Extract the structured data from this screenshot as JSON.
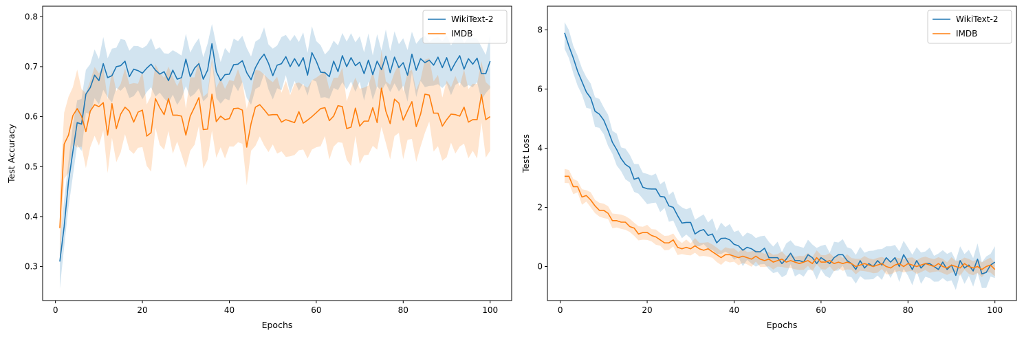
{
  "colors": {
    "blue": "#1f77b4",
    "orange": "#ff7f0e"
  },
  "chart_data": [
    {
      "type": "line",
      "title": "",
      "xlabel": "Epochs",
      "ylabel": "Test Accuracy",
      "xlim": [
        -2.95,
        104.95
      ],
      "ylim": [
        0.232,
        0.821
      ],
      "xticks": [
        0,
        20,
        40,
        60,
        80,
        100
      ],
      "xtick_labels": [
        "0",
        "20",
        "40",
        "60",
        "80",
        "100"
      ],
      "yticks": [
        0.3,
        0.4,
        0.5,
        0.6,
        0.7,
        0.8
      ],
      "ytick_labels": [
        "0.3",
        "0.4",
        "0.5",
        "0.6",
        "0.7",
        "0.8"
      ],
      "legend": "top-right",
      "x": [
        1,
        2,
        3,
        4,
        5,
        6,
        7,
        8,
        9,
        10,
        11,
        12,
        13,
        14,
        15,
        16,
        17,
        18,
        19,
        20,
        21,
        22,
        23,
        24,
        25,
        26,
        27,
        28,
        29,
        30,
        31,
        32,
        33,
        34,
        35,
        36,
        37,
        38,
        39,
        40,
        41,
        42,
        43,
        44,
        45,
        46,
        47,
        48,
        49,
        50,
        51,
        52,
        53,
        54,
        55,
        56,
        57,
        58,
        59,
        60,
        61,
        62,
        63,
        64,
        65,
        66,
        67,
        68,
        69,
        70,
        71,
        72,
        73,
        74,
        75,
        76,
        77,
        78,
        79,
        80,
        81,
        82,
        83,
        84,
        85,
        86,
        87,
        88,
        89,
        90,
        91,
        92,
        93,
        94,
        95,
        96,
        97,
        98,
        99,
        100
      ],
      "series": [
        {
          "name": "WikiText-2",
          "color": "#1f77b4",
          "values": [
            0.31,
            0.38,
            0.47,
            0.53,
            0.588,
            0.585,
            0.645,
            0.658,
            0.683,
            0.672,
            0.706,
            0.678,
            0.682,
            0.7,
            0.702,
            0.711,
            0.68,
            0.695,
            0.692,
            0.687,
            0.697,
            0.705,
            0.693,
            0.685,
            0.69,
            0.672,
            0.693,
            0.675,
            0.678,
            0.715,
            0.68,
            0.697,
            0.706,
            0.675,
            0.693,
            0.746,
            0.69,
            0.672,
            0.684,
            0.685,
            0.704,
            0.705,
            0.712,
            0.688,
            0.674,
            0.698,
            0.714,
            0.725,
            0.707,
            0.682,
            0.703,
            0.706,
            0.72,
            0.7,
            0.716,
            0.701,
            0.718,
            0.683,
            0.728,
            0.711,
            0.689,
            0.688,
            0.68,
            0.711,
            0.69,
            0.722,
            0.7,
            0.718,
            0.702,
            0.709,
            0.686,
            0.713,
            0.684,
            0.711,
            0.694,
            0.721,
            0.688,
            0.719,
            0.698,
            0.708,
            0.683,
            0.725,
            0.693,
            0.716,
            0.708,
            0.713,
            0.703,
            0.719,
            0.698,
            0.718,
            0.692,
            0.708,
            0.722,
            0.695,
            0.716,
            0.705,
            0.717,
            0.686,
            0.686,
            0.711
          ],
          "band": 0.045
        },
        {
          "name": "IMDB",
          "color": "#ff7f0e",
          "values": [
            0.377,
            0.545,
            0.563,
            0.602,
            0.616,
            0.601,
            0.57,
            0.611,
            0.624,
            0.62,
            0.628,
            0.563,
            0.626,
            0.576,
            0.605,
            0.619,
            0.611,
            0.589,
            0.609,
            0.613,
            0.561,
            0.568,
            0.636,
            0.618,
            0.604,
            0.636,
            0.603,
            0.603,
            0.601,
            0.563,
            0.601,
            0.619,
            0.638,
            0.574,
            0.575,
            0.645,
            0.59,
            0.601,
            0.594,
            0.596,
            0.616,
            0.617,
            0.613,
            0.539,
            0.586,
            0.619,
            0.624,
            0.614,
            0.603,
            0.604,
            0.604,
            0.589,
            0.594,
            0.591,
            0.588,
            0.61,
            0.587,
            0.593,
            0.6,
            0.608,
            0.616,
            0.618,
            0.592,
            0.601,
            0.622,
            0.62,
            0.576,
            0.579,
            0.617,
            0.581,
            0.591,
            0.591,
            0.618,
            0.588,
            0.657,
            0.611,
            0.586,
            0.635,
            0.627,
            0.593,
            0.612,
            0.63,
            0.58,
            0.605,
            0.645,
            0.643,
            0.607,
            0.607,
            0.581,
            0.594,
            0.605,
            0.604,
            0.601,
            0.619,
            0.589,
            0.594,
            0.594,
            0.644,
            0.594,
            0.6
          ],
          "band": 0.065
        }
      ]
    },
    {
      "type": "line",
      "title": "",
      "xlabel": "Epochs",
      "ylabel": "Test Loss",
      "xlim": [
        -2.95,
        104.95
      ],
      "ylim": [
        -1.15,
        8.8
      ],
      "xticks": [
        0,
        20,
        40,
        60,
        80,
        100
      ],
      "xtick_labels": [
        "0",
        "20",
        "40",
        "60",
        "80",
        "100"
      ],
      "yticks": [
        0,
        2,
        4,
        6,
        8
      ],
      "ytick_labels": [
        "0",
        "2",
        "4",
        "6",
        "8"
      ],
      "legend": "top-right",
      "x": [
        1,
        2,
        3,
        4,
        5,
        6,
        7,
        8,
        9,
        10,
        11,
        12,
        13,
        14,
        15,
        16,
        17,
        18,
        19,
        20,
        21,
        22,
        23,
        24,
        25,
        26,
        27,
        28,
        29,
        30,
        31,
        32,
        33,
        34,
        35,
        36,
        37,
        38,
        39,
        40,
        41,
        42,
        43,
        44,
        45,
        46,
        47,
        48,
        49,
        50,
        51,
        52,
        53,
        54,
        55,
        56,
        57,
        58,
        59,
        60,
        61,
        62,
        63,
        64,
        65,
        66,
        67,
        68,
        69,
        70,
        71,
        72,
        73,
        74,
        75,
        76,
        77,
        78,
        79,
        80,
        81,
        82,
        83,
        84,
        85,
        86,
        87,
        88,
        89,
        90,
        91,
        92,
        93,
        94,
        95,
        96,
        97,
        98,
        99,
        100
      ],
      "series": [
        {
          "name": "WikiText-2",
          "color": "#1f77b4",
          "values": [
            7.9,
            7.45,
            7.05,
            6.6,
            6.25,
            5.9,
            5.7,
            5.25,
            5.15,
            4.95,
            4.6,
            4.2,
            3.95,
            3.65,
            3.45,
            3.35,
            2.95,
            3.0,
            2.68,
            2.63,
            2.62,
            2.62,
            2.37,
            2.35,
            2.05,
            2.0,
            1.72,
            1.47,
            1.49,
            1.49,
            1.1,
            1.2,
            1.25,
            1.05,
            1.1,
            0.8,
            0.95,
            0.96,
            0.9,
            0.75,
            0.7,
            0.55,
            0.65,
            0.6,
            0.5,
            0.5,
            0.62,
            0.3,
            0.3,
            0.3,
            0.1,
            0.25,
            0.45,
            0.2,
            0.2,
            0.15,
            0.4,
            0.3,
            0.1,
            0.3,
            0.2,
            0.1,
            0.3,
            0.4,
            0.4,
            0.2,
            0.1,
            -0.1,
            0.2,
            -0.05,
            0.1,
            0.0,
            0.2,
            0.05,
            0.3,
            0.15,
            0.3,
            0.0,
            0.4,
            0.15,
            -0.1,
            0.2,
            -0.05,
            0.1,
            0.1,
            0.0,
            -0.1,
            0.15,
            -0.1,
            0.05,
            -0.3,
            0.2,
            -0.05,
            0.05,
            -0.15,
            0.25,
            -0.25,
            -0.2,
            0.05,
            0.15
          ],
          "band": 0.45
        },
        {
          "name": "IMDB",
          "color": "#ff7f0e",
          "values": [
            3.05,
            3.05,
            2.7,
            2.7,
            2.35,
            2.4,
            2.25,
            2.05,
            1.9,
            1.9,
            1.8,
            1.55,
            1.55,
            1.5,
            1.5,
            1.35,
            1.3,
            1.1,
            1.15,
            1.15,
            1.05,
            1.0,
            0.9,
            0.8,
            0.8,
            0.9,
            0.65,
            0.6,
            0.65,
            0.6,
            0.7,
            0.6,
            0.55,
            0.6,
            0.5,
            0.4,
            0.3,
            0.4,
            0.4,
            0.35,
            0.3,
            0.35,
            0.3,
            0.25,
            0.35,
            0.25,
            0.2,
            0.25,
            0.15,
            0.2,
            0.25,
            0.15,
            0.2,
            0.15,
            0.1,
            0.15,
            0.2,
            0.1,
            0.3,
            0.15,
            0.15,
            0.2,
            0.1,
            0.15,
            0.1,
            0.15,
            0.1,
            0.0,
            0.05,
            0.1,
            0.05,
            0.0,
            0.05,
            0.1,
            0.0,
            -0.05,
            0.05,
            0.1,
            0.0,
            0.1,
            0.05,
            0.0,
            0.05,
            0.1,
            0.05,
            0.0,
            0.1,
            0.0,
            -0.05,
            0.05,
            0.0,
            -0.05,
            0.1,
            0.0,
            -0.05,
            0.0,
            -0.1,
            0.0,
            0.05,
            -0.1
          ],
          "band": 0.22
        }
      ]
    }
  ]
}
